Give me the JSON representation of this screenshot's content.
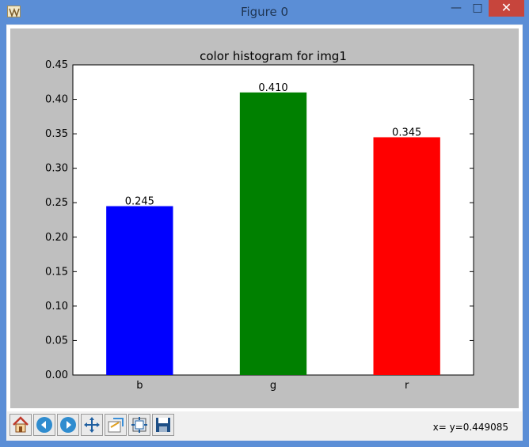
{
  "window": {
    "title": "Figure 0",
    "minimize_glyph": "—",
    "maximize_glyph": "□",
    "close_glyph": "✕"
  },
  "toolbar": {
    "tools": [
      {
        "name": "home-icon"
      },
      {
        "name": "back-icon"
      },
      {
        "name": "forward-icon"
      },
      {
        "name": "pan-icon"
      },
      {
        "name": "zoom-icon"
      },
      {
        "name": "subplots-icon"
      },
      {
        "name": "save-icon"
      }
    ],
    "coordinates": "x= y=0.449085"
  },
  "chart_data": {
    "type": "bar",
    "title": "color histogram for img1",
    "categories": [
      "b",
      "g",
      "r"
    ],
    "values": [
      0.245,
      0.41,
      0.345
    ],
    "value_labels": [
      "0.245",
      "0.410",
      "0.345"
    ],
    "colors": [
      "#0000ff",
      "#008000",
      "#ff0000"
    ],
    "ylim": [
      0,
      0.45
    ],
    "yticks": [
      0.0,
      0.05,
      0.1,
      0.15,
      0.2,
      0.25,
      0.3,
      0.35,
      0.4,
      0.45
    ],
    "ytick_labels": [
      "0.00",
      "0.05",
      "0.10",
      "0.15",
      "0.20",
      "0.25",
      "0.30",
      "0.35",
      "0.40",
      "0.45"
    ],
    "grid": false
  }
}
